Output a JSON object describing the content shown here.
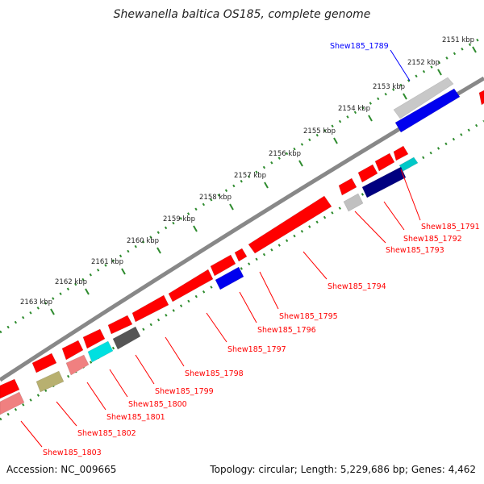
{
  "title": "Shewanella baltica OS185, complete genome",
  "footer": {
    "accession": "Accession: NC_009665",
    "summary": "Topology: circular; Length: 5,229,686 bp; Genes: 4,462"
  },
  "colors": {
    "backbone": "#808080",
    "ruler": "#2e8b2e",
    "forward_gene": "#ff0000",
    "link_forward": "#ff0000",
    "link_reverse": "#0000ff"
  },
  "scale_ticks": [
    {
      "label": "2151 kbp"
    },
    {
      "label": "2152 kbp"
    },
    {
      "label": "2153 kbp"
    },
    {
      "label": "2154 kbp"
    },
    {
      "label": "2155 kbp"
    },
    {
      "label": "2156 kbp"
    },
    {
      "label": "2157 kbp"
    },
    {
      "label": "2158 kbp"
    },
    {
      "label": "2159 kbp"
    },
    {
      "label": "2160 kbp"
    },
    {
      "label": "2161 kbp"
    },
    {
      "label": "2162 kbp"
    },
    {
      "label": "2163 kbp"
    }
  ],
  "gene_labels": [
    {
      "name": "Shew185_1789",
      "color": "#0000ff"
    },
    {
      "name": "Shew185_1791",
      "color": "#ff0000"
    },
    {
      "name": "Shew185_1792",
      "color": "#ff0000"
    },
    {
      "name": "Shew185_1793",
      "color": "#ff0000"
    },
    {
      "name": "Shew185_1794",
      "color": "#ff0000"
    },
    {
      "name": "Shew185_1795",
      "color": "#ff0000"
    },
    {
      "name": "Shew185_1796",
      "color": "#ff0000"
    },
    {
      "name": "Shew185_1797",
      "color": "#ff0000"
    },
    {
      "name": "Shew185_1798",
      "color": "#ff0000"
    },
    {
      "name": "Shew185_1799",
      "color": "#ff0000"
    },
    {
      "name": "Shew185_1800",
      "color": "#ff0000"
    },
    {
      "name": "Shew185_1801",
      "color": "#ff0000"
    },
    {
      "name": "Shew185_1802",
      "color": "#ff0000"
    },
    {
      "name": "Shew185_1803",
      "color": "#ff0000"
    }
  ]
}
